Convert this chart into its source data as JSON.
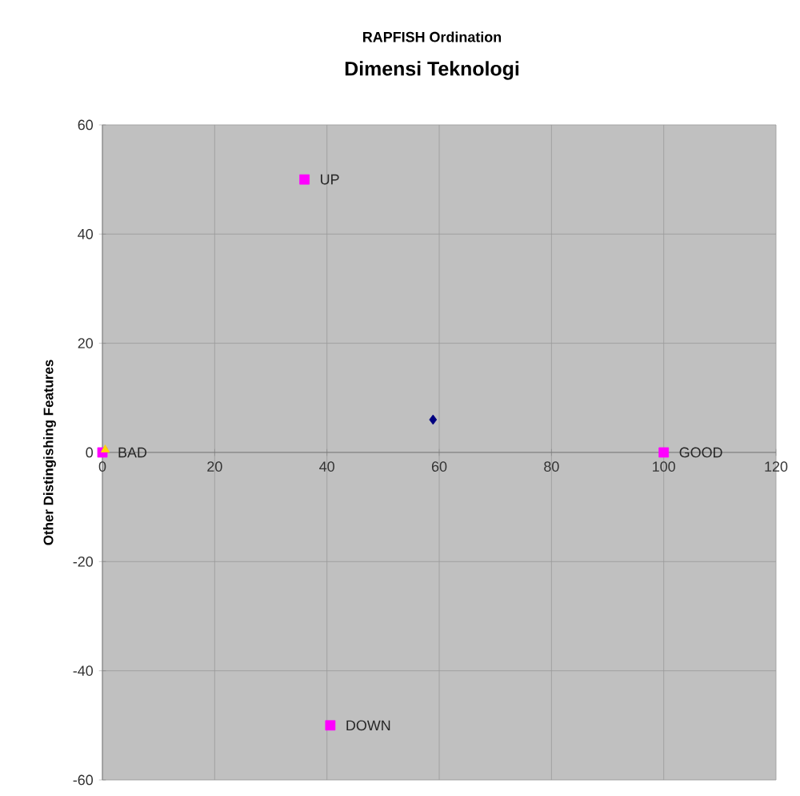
{
  "chart_data": {
    "type": "scatter",
    "title": "RAPFISH Ordination",
    "subtitle": "Dimensi Teknologi",
    "ylabel": "Other Distingishing  Features",
    "series": [
      {
        "color": "#ff00ff",
        "marker": "square",
        "x": [
          0,
          100,
          36,
          40.6
        ],
        "values": [
          0,
          0,
          50,
          -50
        ]
      },
      {
        "color": "#ffd700",
        "marker": "triangle",
        "x": [
          0.5
        ],
        "values": [
          0.5
        ]
      },
      {
        "color": "#000080",
        "marker": "diamond",
        "x": [
          58.9
        ],
        "values": [
          6
        ]
      }
    ],
    "annotations": [
      {
        "text": "BAD",
        "x": 0,
        "y": 0
      },
      {
        "text": "GOOD",
        "x": 100,
        "y": 0
      },
      {
        "text": "UP",
        "x": 36,
        "y": 50
      },
      {
        "text": "DOWN",
        "x": 40.6,
        "y": -50
      }
    ],
    "xlim": [
      0,
      120
    ],
    "ylim": [
      -60,
      60
    ],
    "xticks": [
      0,
      20,
      40,
      60,
      80,
      100,
      120
    ],
    "yticks": [
      -60,
      -40,
      -20,
      0,
      20,
      40,
      60
    ],
    "grid": true
  }
}
